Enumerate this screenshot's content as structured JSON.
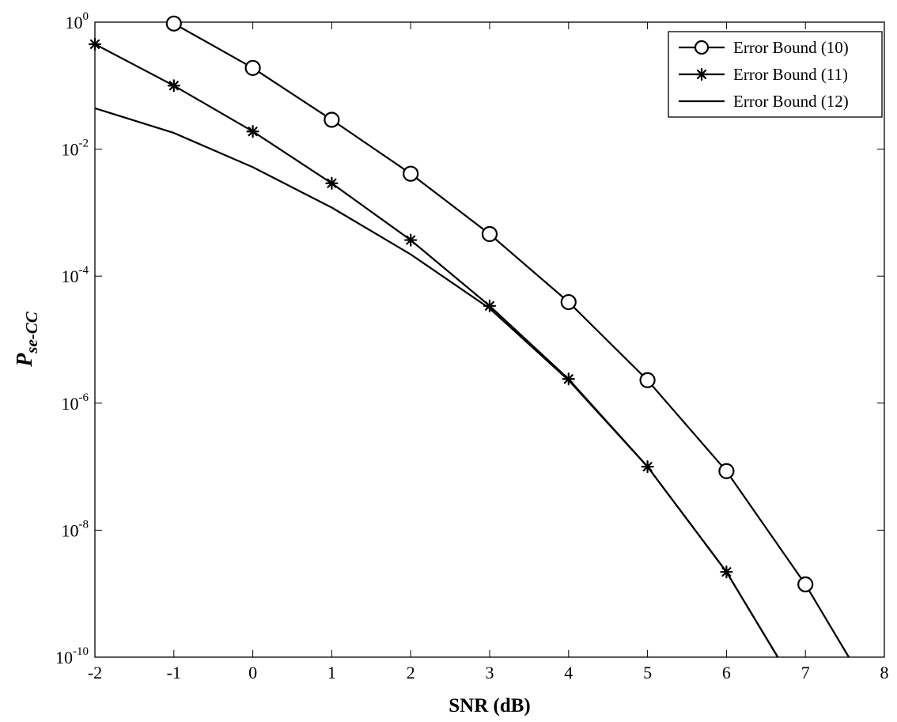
{
  "chart_data": {
    "type": "line",
    "xlabel": "SNR (dB)",
    "ylabel": {
      "main": "P",
      "sub": "se-CC"
    },
    "xlim": [
      -2,
      8
    ],
    "ylim": [
      1e-10,
      1
    ],
    "yscale": "log",
    "grid": false,
    "legend_position": "top-right",
    "x_ticks": [
      "-2",
      "-1",
      "0",
      "1",
      "2",
      "3",
      "4",
      "5",
      "6",
      "7",
      "8"
    ],
    "y_ticks": [
      {
        "base": "10",
        "exp": "0",
        "value": 1
      },
      {
        "base": "10",
        "exp": "-2",
        "value": 0.01
      },
      {
        "base": "10",
        "exp": "-4",
        "value": 0.0001
      },
      {
        "base": "10",
        "exp": "-6",
        "value": 1e-06
      },
      {
        "base": "10",
        "exp": "-8",
        "value": 1e-08
      },
      {
        "base": "10",
        "exp": "-10",
        "value": 1e-10
      }
    ],
    "series": [
      {
        "name": "Error Bound (10)",
        "marker": "circle",
        "x": [
          -1,
          0,
          1,
          2,
          3,
          4,
          5,
          6,
          7,
          7.55
        ],
        "y": [
          0.95,
          0.19,
          0.029,
          0.0041,
          0.00046,
          3.9e-05,
          2.3e-06,
          8.5e-08,
          1.4e-09,
          1e-10
        ]
      },
      {
        "name": "Error Bound (11)",
        "marker": "star",
        "x": [
          -2,
          -1,
          0,
          1,
          2,
          3,
          4,
          5,
          6,
          6.65
        ],
        "y": [
          0.45,
          0.1,
          0.019,
          0.0029,
          0.00037,
          3.4e-05,
          2.4e-06,
          1e-07,
          2.2e-09,
          1e-10
        ]
      },
      {
        "name": "Error Bound (12)",
        "marker": "none",
        "x": [
          -2,
          -1,
          0,
          1,
          2,
          3,
          4,
          5,
          6,
          6.65
        ],
        "y": [
          0.044,
          0.018,
          0.0052,
          0.0012,
          0.00022,
          3.1e-05,
          2.3e-06,
          1e-07,
          2.2e-09,
          1e-10
        ]
      }
    ]
  }
}
